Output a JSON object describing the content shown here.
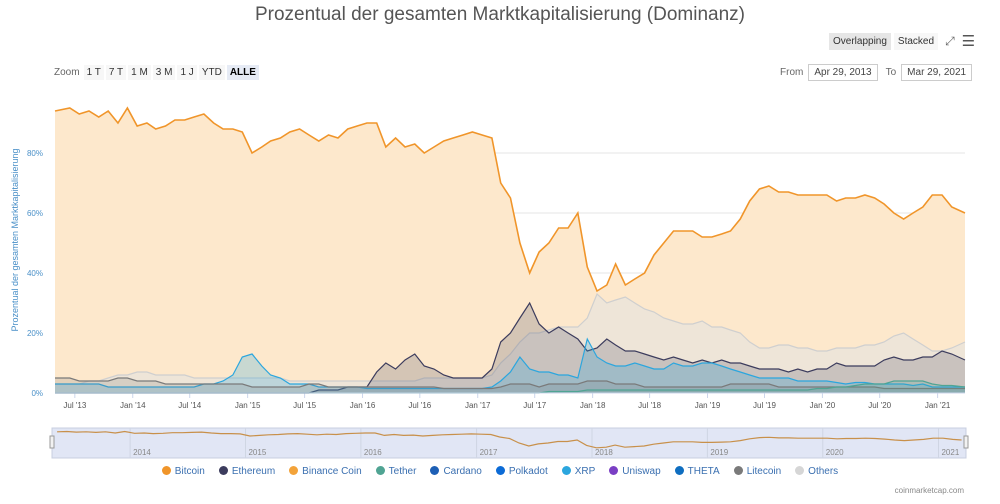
{
  "header": {
    "title": "Prozentual der gesamten Marktkapitalisierung (Dominanz)",
    "overlapping": "Overlapping",
    "stacked": "Stacked",
    "fullscreen_icon": "expand-icon",
    "menu_icon": "hamburger-menu-icon"
  },
  "zoom": {
    "label": "Zoom",
    "buttons": [
      "1 T",
      "7 T",
      "1 M",
      "3 M",
      "1 J",
      "YTD",
      "ALLE"
    ],
    "selected": "ALLE"
  },
  "range": {
    "from_label": "From",
    "from": "Apr 29, 2013",
    "to_label": "To",
    "to": "Mar 29, 2021"
  },
  "credit": "coinmarketcap.com",
  "navigator": {
    "labels": [
      "2014",
      "2015",
      "2016",
      "2017",
      "2018",
      "2019",
      "2020",
      "2021"
    ]
  },
  "chart_data": {
    "type": "area",
    "title": "Prozentual der gesamten Marktkapitalisierung (Dominanz)",
    "ylabel": "Prozentual der gesamten Marktkapitalisierung",
    "ylim": [
      0,
      100
    ],
    "xlim": [
      "2013-04-29",
      "2021-03-29"
    ],
    "yticks": [
      "0%",
      "20%",
      "40%",
      "60%",
      "80%"
    ],
    "xticks": [
      "Jul '13",
      "Jan '14",
      "Jul '14",
      "Jan '15",
      "Jul '15",
      "Jan '16",
      "Jul '16",
      "Jan '17",
      "Jul '17",
      "Jan '18",
      "Jul '18",
      "Jan '19",
      "Jul '19",
      "Jan '20",
      "Jul '20",
      "Jan '21"
    ],
    "grid": true,
    "legend_position": "bottom",
    "legend": [
      {
        "name": "Bitcoin",
        "color": "#f0952a"
      },
      {
        "name": "Ethereum",
        "color": "#3c3c5d"
      },
      {
        "name": "Binance Coin",
        "color": "#f3a33a"
      },
      {
        "name": "Tether",
        "color": "#50a493"
      },
      {
        "name": "Cardano",
        "color": "#1d5fb5"
      },
      {
        "name": "Polkadot",
        "color": "#0c6bd6"
      },
      {
        "name": "XRP",
        "color": "#2ba6de"
      },
      {
        "name": "Uniswap",
        "color": "#7a3fc4"
      },
      {
        "name": "THETA",
        "color": "#0f6ec0"
      },
      {
        "name": "Litecoin",
        "color": "#7a7a7a"
      },
      {
        "name": "Others",
        "color": "#d6d6d6"
      }
    ],
    "start_month": "2013-05",
    "series": [
      {
        "name": "Bitcoin",
        "color": "#f0952a",
        "fill": "#fde8cc",
        "values": [
          94,
          95,
          93,
          94,
          92,
          94,
          90,
          95,
          89,
          90,
          88,
          89,
          91,
          91,
          92,
          93,
          90,
          88,
          88,
          87,
          80,
          82,
          84,
          85,
          87,
          88,
          86,
          84,
          86,
          85,
          88,
          89,
          90,
          90,
          82,
          85,
          82,
          83,
          80,
          82,
          84,
          85,
          86,
          87,
          86,
          85,
          70,
          65,
          50,
          40,
          47,
          50,
          55,
          55,
          60,
          42,
          34,
          36,
          43,
          36,
          38,
          40,
          46,
          50,
          54,
          54,
          54,
          52,
          52,
          53,
          54,
          58,
          64,
          68,
          69,
          67,
          67,
          66,
          66,
          66,
          66,
          64,
          65,
          65,
          66,
          65,
          63,
          60,
          58,
          60,
          62,
          66,
          66,
          62,
          60
        ]
      },
      {
        "name": "Others",
        "color": "#cfcfcf",
        "fill": "rgba(225,225,225,0.55)",
        "values": [
          3,
          3,
          3,
          4,
          4,
          5,
          6,
          6,
          7,
          7,
          6,
          6,
          6,
          6,
          5,
          5,
          5,
          5,
          5,
          5,
          5,
          5,
          5,
          5,
          4,
          4,
          4,
          4,
          4,
          4,
          4,
          4,
          4,
          4,
          4,
          4,
          4,
          4,
          5,
          5,
          5,
          5,
          5,
          5,
          5,
          6,
          10,
          13,
          17,
          20,
          20,
          21,
          22,
          22,
          22,
          25,
          33,
          30,
          31,
          32,
          30,
          28,
          27,
          25,
          24,
          23,
          23,
          24,
          22,
          22,
          21,
          20,
          17,
          15,
          15,
          16,
          16,
          15,
          15,
          14,
          14,
          15,
          15,
          15,
          16,
          16,
          17,
          19,
          20,
          18,
          16,
          14,
          14,
          15,
          17
        ]
      },
      {
        "name": "Ethereum",
        "color": "#3c3c5d",
        "fill": "rgba(90,90,110,0.25)",
        "values": [
          0,
          0,
          0,
          0,
          0,
          0,
          0,
          0,
          0,
          0,
          0,
          0,
          0,
          0,
          0,
          0,
          0,
          0,
          0,
          0,
          0,
          0,
          0,
          0,
          0,
          0,
          0,
          1,
          1,
          1,
          2,
          2,
          2,
          7,
          10,
          8,
          11,
          13,
          9,
          8,
          6,
          5,
          5,
          5,
          5,
          8,
          17,
          20,
          25,
          30,
          23,
          20,
          22,
          20,
          18,
          14,
          15,
          18,
          16,
          14,
          14,
          13,
          12,
          11,
          12,
          11,
          10,
          11,
          10,
          11,
          10,
          10,
          9,
          8,
          8,
          8,
          7,
          8,
          7,
          8,
          8,
          10,
          9,
          9,
          9,
          9,
          11,
          12,
          11,
          11,
          12,
          12,
          14,
          13,
          11
        ]
      },
      {
        "name": "XRP",
        "color": "#2ba6de",
        "fill": "rgba(43,166,222,0.25)",
        "values": [
          3,
          3,
          3,
          3,
          3,
          2,
          2,
          2,
          2,
          2,
          2,
          2,
          2,
          2,
          2,
          3,
          3,
          4,
          6,
          12,
          13,
          9,
          6,
          5,
          3,
          3,
          3,
          2,
          2,
          2,
          2,
          2,
          1.5,
          1.5,
          1.5,
          1.5,
          1.5,
          1.5,
          1.5,
          1.5,
          1.5,
          1.5,
          1.5,
          1.5,
          1.5,
          2,
          4,
          7,
          12,
          8,
          7,
          7,
          6,
          6,
          5,
          18,
          12,
          10,
          9,
          9,
          10,
          9,
          8,
          8,
          10,
          9,
          9,
          10,
          10,
          9,
          8,
          7,
          6,
          5,
          5,
          5,
          5,
          4,
          4,
          4,
          4,
          3.5,
          3,
          3.5,
          3.5,
          3,
          3,
          3,
          3,
          2.5,
          3,
          2,
          2,
          2,
          2
        ]
      },
      {
        "name": "Litecoin",
        "color": "#7a7a7a",
        "fill": "rgba(120,120,120,0.2)",
        "values": [
          5,
          5,
          4,
          4,
          4,
          4,
          5,
          5,
          4,
          4,
          4,
          3,
          3,
          3,
          3,
          3,
          3,
          3,
          3,
          3,
          2,
          2,
          2,
          2,
          2,
          2,
          3,
          3,
          2,
          2,
          2,
          2,
          2,
          2,
          2,
          2,
          2,
          2,
          2,
          2,
          1.5,
          1.5,
          1.5,
          1.5,
          1.5,
          1.5,
          2,
          3,
          3,
          3,
          2,
          3,
          3,
          3,
          3,
          4,
          4,
          4,
          3,
          3,
          3,
          2,
          2,
          2,
          2,
          2,
          2,
          2,
          2,
          2,
          3,
          3,
          3,
          3,
          3,
          2,
          2,
          2,
          2,
          2,
          2,
          2,
          2,
          2,
          2,
          2,
          1.5,
          1.5,
          1.5,
          1.5,
          1.5,
          1.5,
          1.5,
          1.5,
          1.5
        ]
      },
      {
        "name": "Tether",
        "color": "#50a493",
        "fill": "rgba(80,164,147,0.2)",
        "values": [
          0,
          0,
          0,
          0,
          0,
          0,
          0,
          0,
          0,
          0,
          0,
          0,
          0,
          0,
          0,
          0,
          0,
          0,
          0,
          0,
          0,
          0,
          0,
          0,
          0,
          0,
          0,
          0,
          0,
          0,
          0,
          0,
          0,
          0,
          0,
          0,
          0,
          0,
          0,
          0,
          0,
          0,
          0,
          0,
          0,
          0,
          0,
          0,
          0,
          0,
          0,
          0.5,
          0.5,
          0.5,
          0.5,
          1,
          1,
          1,
          1,
          1,
          1,
          1,
          1,
          1,
          1,
          1,
          1,
          1,
          1,
          1,
          1,
          1,
          1,
          1,
          1,
          1,
          1,
          1,
          1,
          1.5,
          1.5,
          2,
          2,
          2.5,
          3,
          3,
          3,
          4,
          4,
          4,
          4,
          3,
          2.5,
          2.5,
          2
        ]
      }
    ]
  }
}
